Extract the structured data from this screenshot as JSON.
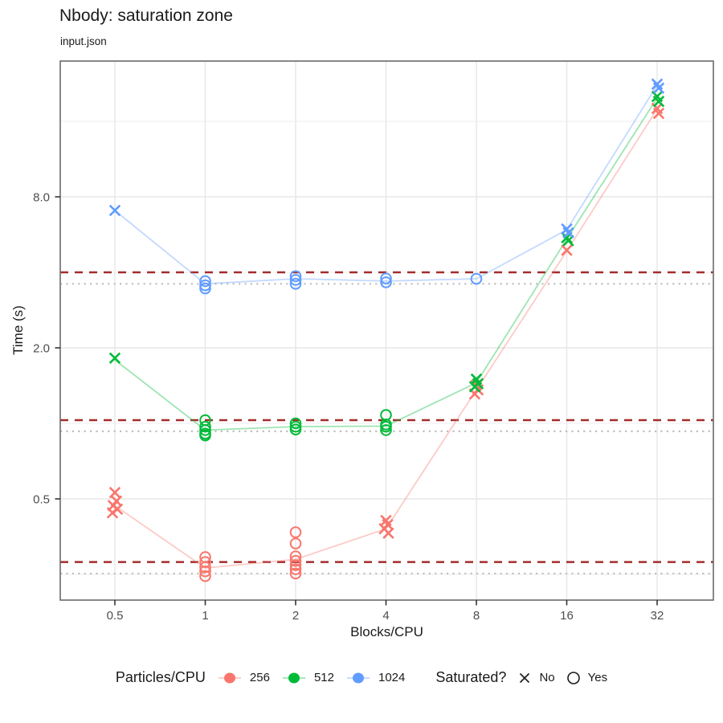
{
  "chart_data": {
    "type": "scatter",
    "title": "Nbody: saturation zone",
    "subtitle": "input.json",
    "xlabel": "Blocks/CPU",
    "ylabel": "Time (s)",
    "x_scale": "log2",
    "y_scale": "log2",
    "grid": true,
    "legend_position": "bottom",
    "xlim": [
      0.33,
      49
    ],
    "ylim": [
      0.2,
      28
    ],
    "x_ticks": [
      0.5,
      1,
      2,
      4,
      8,
      16,
      32
    ],
    "x_tick_labels": [
      "0.5",
      "1",
      "2",
      "4",
      "8",
      "16",
      "32"
    ],
    "y_ticks": [
      0.5,
      2,
      8
    ],
    "y_tick_labels": [
      "0.5",
      "2.0",
      "8.0"
    ],
    "reference_style": {
      "dashed_color": "#A32C2C",
      "dotted_color": "#BFBFBF"
    },
    "series": [
      {
        "name": "256",
        "color": "#F8766D",
        "line_x": [
          0.5,
          1,
          2,
          4,
          8,
          16,
          32
        ],
        "line_y": [
          0.47,
          0.265,
          0.287,
          0.38,
          1.36,
          4.86,
          17.9
        ],
        "points": [
          {
            "x": 0.5,
            "shape": "x",
            "values": [
              0.53,
              0.49,
              0.47,
              0.455,
              0.44
            ]
          },
          {
            "x": 1,
            "shape": "o",
            "values": [
              0.293,
              0.28,
              0.267,
              0.257,
              0.246
            ]
          },
          {
            "x": 2,
            "shape": "o",
            "values": [
              0.368,
              0.332,
              0.295,
              0.283,
              0.272,
              0.262,
              0.252
            ]
          },
          {
            "x": 4,
            "shape": "x",
            "values": [
              0.41,
              0.395,
              0.38,
              0.365
            ]
          },
          {
            "x": 8,
            "shape": "x",
            "values": [
              1.42,
              1.36,
              1.31
            ]
          },
          {
            "x": 16,
            "shape": "x",
            "values": [
              4.9
            ]
          },
          {
            "x": 32,
            "shape": "x",
            "values": [
              18.0,
              17.2
            ]
          }
        ],
        "dashed_ref": 0.28,
        "dotted_ref": 0.252
      },
      {
        "name": "512",
        "color": "#00BA38",
        "line_x": [
          0.5,
          1,
          2,
          4,
          8,
          16,
          32
        ],
        "line_y": [
          1.79,
          0.94,
          0.97,
          0.975,
          1.45,
          5.43,
          19.8
        ],
        "points": [
          {
            "x": 0.5,
            "shape": "x",
            "values": [
              1.82
            ]
          },
          {
            "x": 1,
            "shape": "o",
            "values": [
              1.03,
              0.97,
              0.94,
              0.91,
              0.895
            ]
          },
          {
            "x": 2,
            "shape": "o",
            "values": [
              1.0,
              0.97,
              0.945
            ]
          },
          {
            "x": 4,
            "shape": "o",
            "values": [
              1.08,
              0.99,
              0.97,
              0.94
            ]
          },
          {
            "x": 8,
            "shape": "x",
            "values": [
              1.5,
              1.44,
              1.4
            ]
          },
          {
            "x": 16,
            "shape": "x",
            "values": [
              5.5,
              5.35
            ]
          },
          {
            "x": 32,
            "shape": "x",
            "values": [
              20.1,
              19.2
            ]
          }
        ],
        "dashed_ref": 1.03,
        "dotted_ref": 0.93
      },
      {
        "name": "1024",
        "color": "#619CFF",
        "line_x": [
          0.5,
          1,
          2,
          4,
          8,
          16,
          32
        ],
        "line_y": [
          7.06,
          3.6,
          3.77,
          3.69,
          3.77,
          5.91,
          22.3
        ],
        "points": [
          {
            "x": 0.5,
            "shape": "x",
            "values": [
              7.06
            ]
          },
          {
            "x": 1,
            "shape": "o",
            "values": [
              3.69,
              3.55,
              3.45
            ]
          },
          {
            "x": 2,
            "shape": "o",
            "values": [
              3.86,
              3.73,
              3.6
            ]
          },
          {
            "x": 4,
            "shape": "o",
            "values": [
              3.78,
              3.65
            ]
          },
          {
            "x": 8,
            "shape": "o",
            "values": [
              3.77
            ]
          },
          {
            "x": 16,
            "shape": "x",
            "values": [
              5.95,
              5.75
            ]
          },
          {
            "x": 32,
            "shape": "x",
            "values": [
              22.5,
              21.7
            ]
          }
        ],
        "dashed_ref": 4.0,
        "dotted_ref": 3.6
      }
    ]
  },
  "legend": {
    "particles": {
      "title": "Particles/CPU",
      "items": [
        {
          "label": "256",
          "color": "#F8766D"
        },
        {
          "label": "512",
          "color": "#00BA38"
        },
        {
          "label": "1024",
          "color": "#619CFF"
        }
      ]
    },
    "saturated": {
      "title": "Saturated?",
      "items": [
        {
          "label": "No",
          "shape": "x"
        },
        {
          "label": "Yes",
          "shape": "o"
        }
      ]
    }
  }
}
